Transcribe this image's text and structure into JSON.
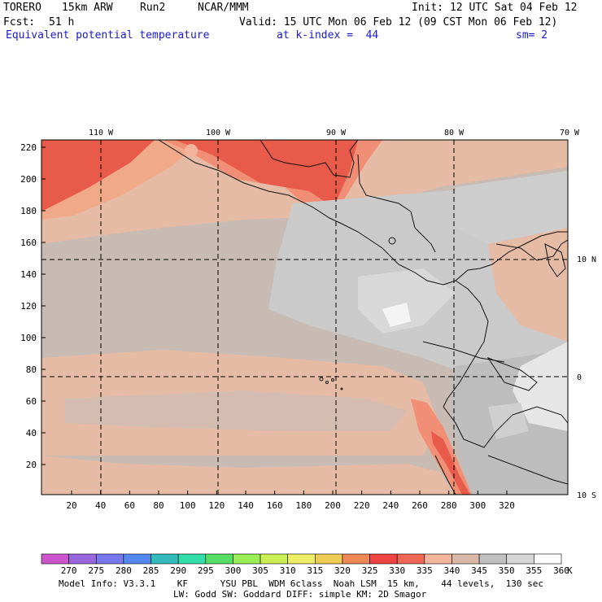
{
  "header": {
    "model": "TORERO",
    "resolution": "15km ARW",
    "run": "Run2",
    "center": "NCAR/MMM",
    "init": "Init: 12 UTC Sat 04 Feb 12",
    "fcst_label": "Fcst:",
    "fcst_value": "51 h",
    "valid": "Valid: 15 UTC Mon 06 Feb 12 (09 CST Mon 06 Feb 12)",
    "field": "Equivalent potential temperature",
    "level": "at k-index =  44",
    "smoothing": "sm= 2"
  },
  "map": {
    "x_ticks": [
      "20",
      "40",
      "60",
      "80",
      "100",
      "120",
      "140",
      "160",
      "180",
      "200",
      "220",
      "240",
      "260",
      "280",
      "300",
      "320"
    ],
    "y_ticks": [
      "20",
      "40",
      "60",
      "80",
      "100",
      "120",
      "140",
      "160",
      "180",
      "200",
      "220"
    ],
    "lon_labels": [
      "110 W",
      "100 W",
      "90 W",
      "80 W",
      "70 W"
    ],
    "lat_labels": [
      "10 N",
      "0",
      "10 S"
    ]
  },
  "colorbar": {
    "levels": [
      "270",
      "275",
      "280",
      "285",
      "290",
      "295",
      "300",
      "305",
      "310",
      "315",
      "320",
      "325",
      "330",
      "335",
      "340",
      "345",
      "350",
      "355",
      "360"
    ],
    "unit": "K",
    "colors": [
      "#cc55cc",
      "#9966dd",
      "#7777ee",
      "#5588ee",
      "#33bbbb",
      "#33ddaa",
      "#55dd66",
      "#99ee55",
      "#ccee55",
      "#eeee66",
      "#eecc55",
      "#ee8855",
      "#ee4444",
      "#ee6655",
      "#f2b49a",
      "#d9b8a8",
      "#c0c0c0",
      "#d6d6d6",
      "#ffffff"
    ]
  },
  "footer": {
    "line1": "Model Info: V3.3.1    KF      YSU PBL  WDM 6class  Noah LSM  15 km,    44 levels,  130 sec",
    "line2": "LW: Godd SW: Goddard DIFF: simple KM: 2D Smagor"
  }
}
